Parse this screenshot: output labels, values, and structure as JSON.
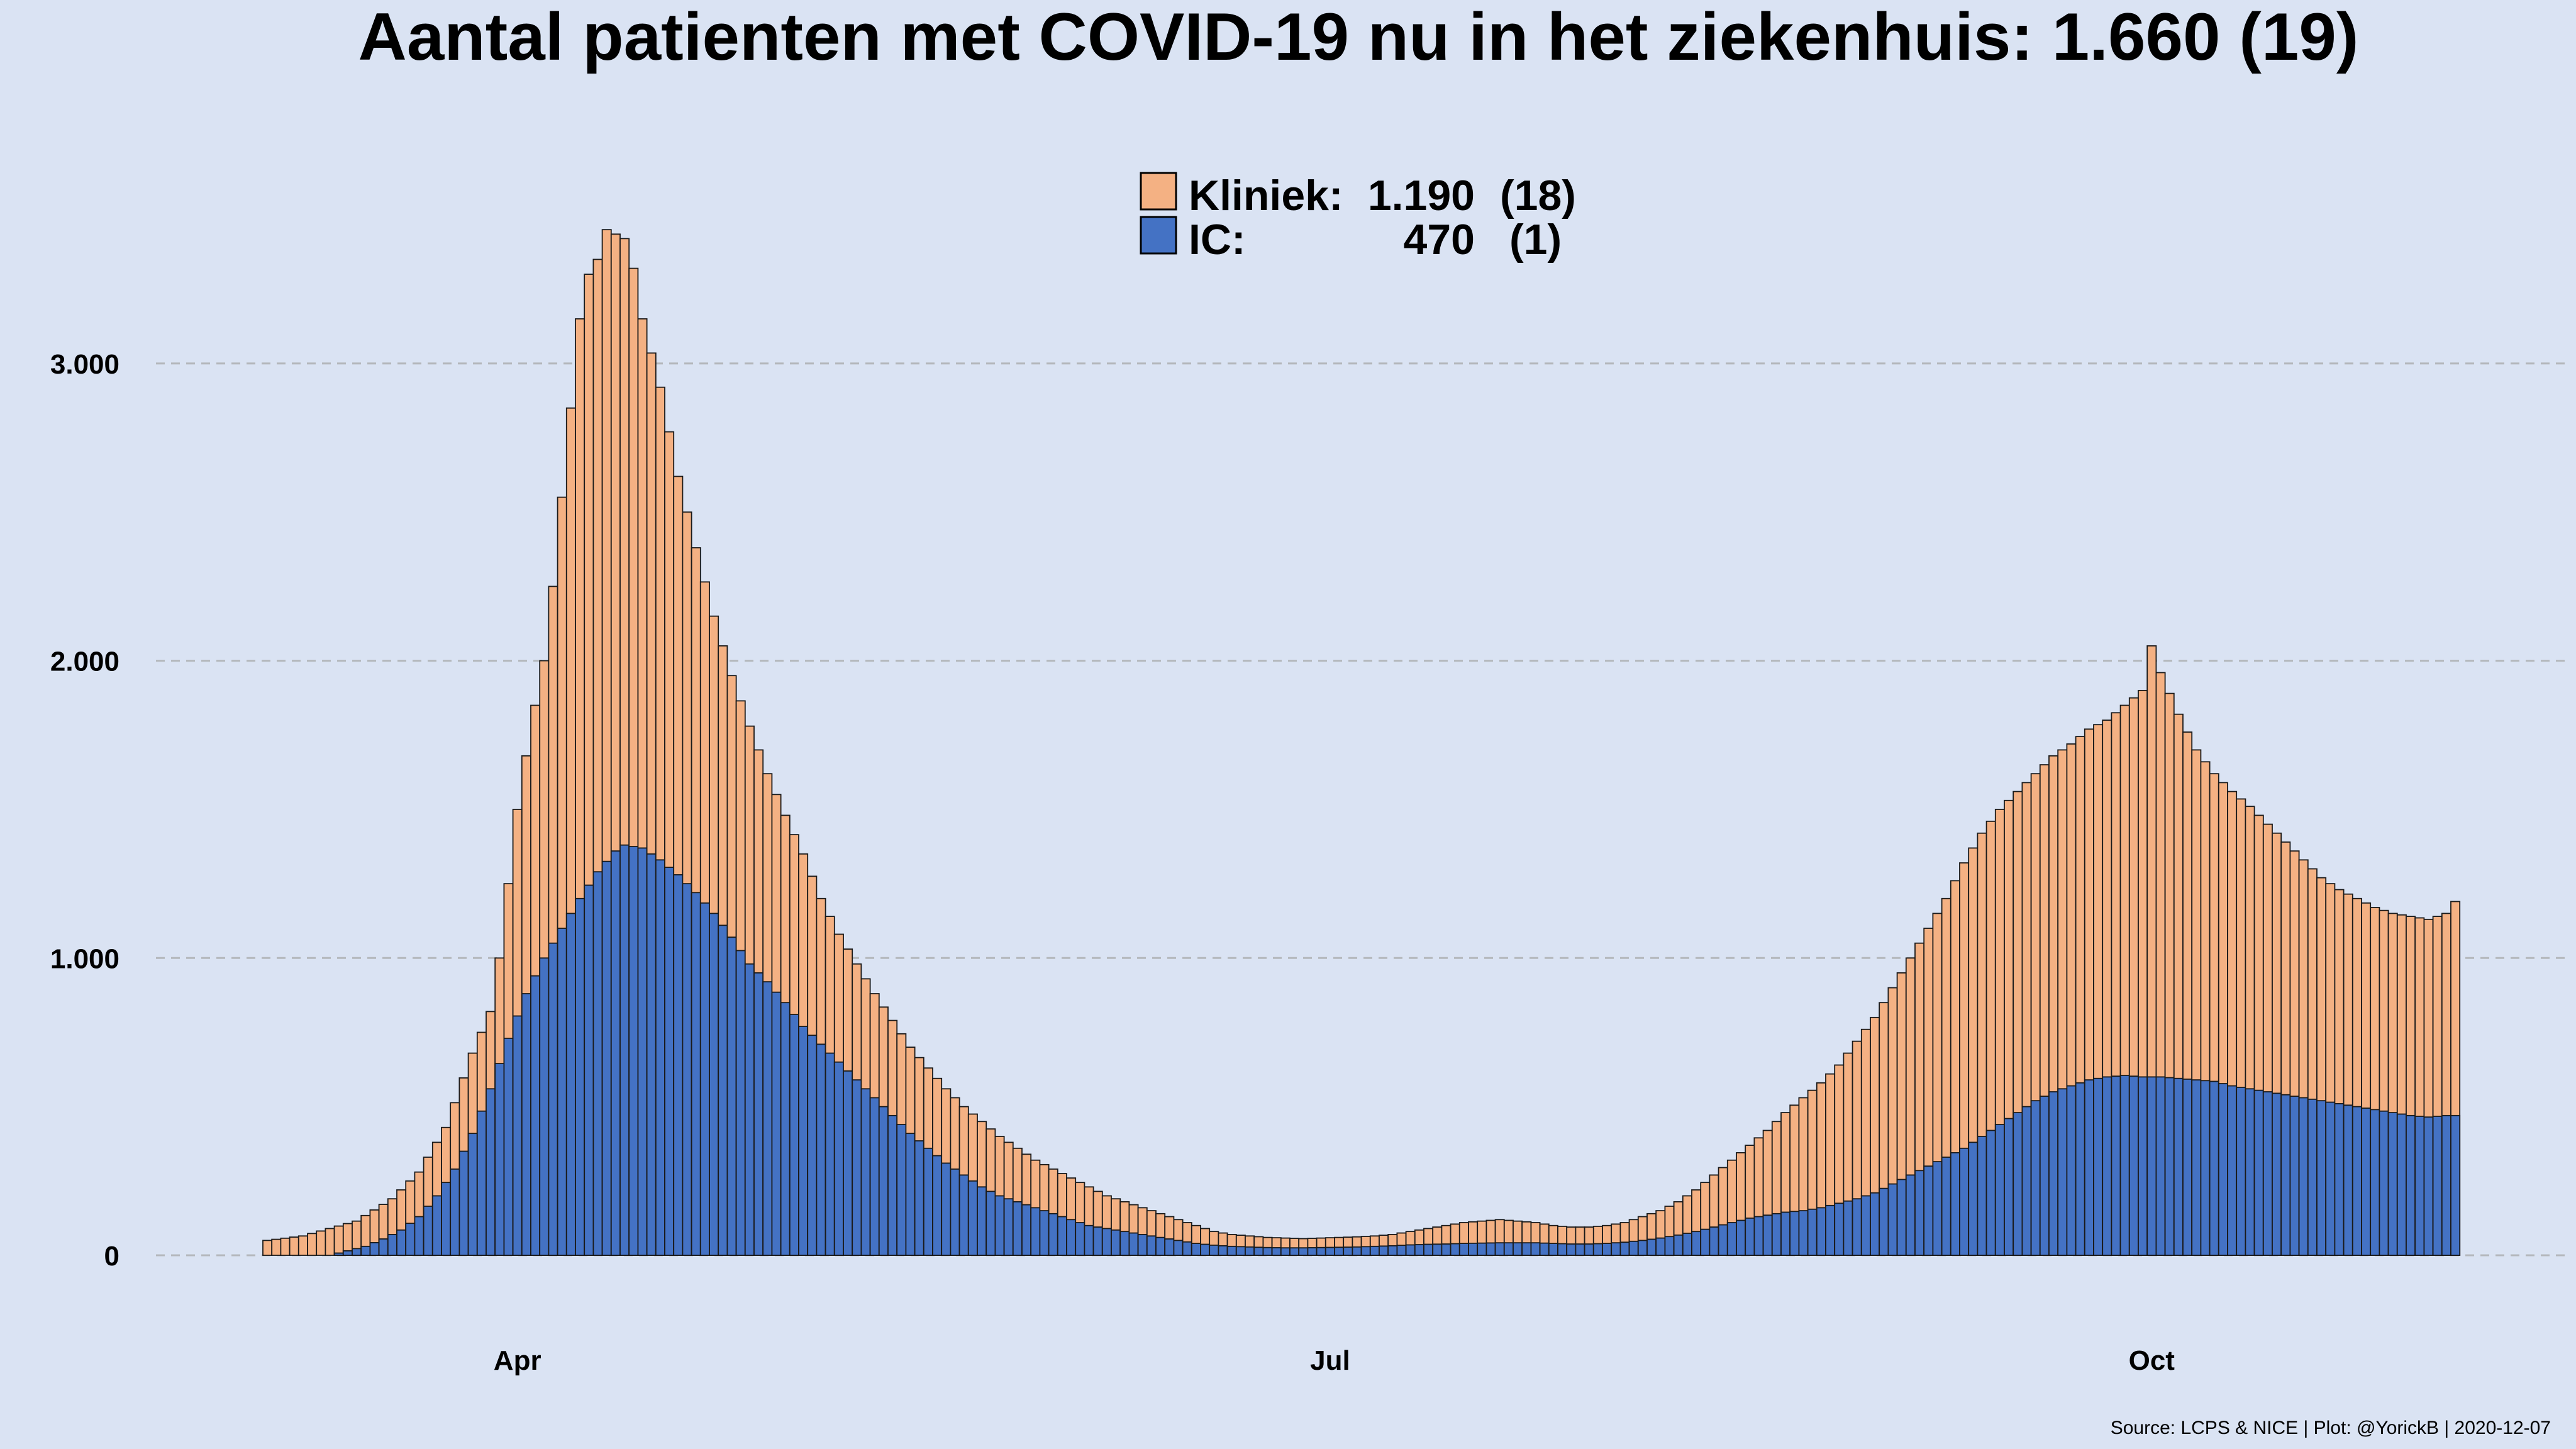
{
  "chart_data": {
    "type": "bar",
    "stacked": true,
    "title": "Aantal patienten met COVID-19 nu in het ziekenhuis: 1.660  (19)",
    "source": "Source: LCPS & NICE | Plot: @YorickB |  2020-12-07",
    "x_ticks": [
      "Apr",
      "Jul",
      "Oct"
    ],
    "y_ticks": [
      "0",
      "1.000",
      "2.000",
      "3.000"
    ],
    "ylim": [
      0,
      4000
    ],
    "grid": "horizontal dashed",
    "legend_position": "top-center",
    "series": [
      {
        "name": "Kliniek",
        "legend_label": "Kliniek:",
        "legend_value": "1.190",
        "legend_delta": "(18)",
        "color": "#f4b183",
        "knots": [
          [
            0,
            50
          ],
          [
            4,
            65
          ],
          [
            10,
            115
          ],
          [
            14,
            190
          ],
          [
            17,
            280
          ],
          [
            20,
            430
          ],
          [
            23,
            680
          ],
          [
            25,
            820
          ],
          [
            26,
            1000
          ],
          [
            27,
            1250
          ],
          [
            28,
            1500
          ],
          [
            29,
            1680
          ],
          [
            30,
            1850
          ],
          [
            31,
            2000
          ],
          [
            32,
            2250
          ],
          [
            33,
            2550
          ],
          [
            34,
            2850
          ],
          [
            35,
            3150
          ],
          [
            36,
            3300
          ],
          [
            37,
            3350
          ],
          [
            38,
            3450
          ],
          [
            40,
            3420
          ],
          [
            41,
            3320
          ],
          [
            42,
            3150
          ],
          [
            44,
            2920
          ],
          [
            46,
            2620
          ],
          [
            48,
            2380
          ],
          [
            50,
            2150
          ],
          [
            52,
            1950
          ],
          [
            54,
            1780
          ],
          [
            56,
            1620
          ],
          [
            58,
            1480
          ],
          [
            60,
            1350
          ],
          [
            62,
            1200
          ],
          [
            64,
            1080
          ],
          [
            66,
            980
          ],
          [
            68,
            880
          ],
          [
            70,
            790
          ],
          [
            72,
            700
          ],
          [
            74,
            630
          ],
          [
            76,
            560
          ],
          [
            78,
            500
          ],
          [
            80,
            450
          ],
          [
            82,
            400
          ],
          [
            84,
            360
          ],
          [
            86,
            320
          ],
          [
            88,
            290
          ],
          [
            90,
            260
          ],
          [
            92,
            230
          ],
          [
            94,
            200
          ],
          [
            96,
            180
          ],
          [
            98,
            160
          ],
          [
            100,
            140
          ],
          [
            102,
            120
          ],
          [
            104,
            100
          ],
          [
            106,
            80
          ],
          [
            108,
            70
          ],
          [
            110,
            65
          ],
          [
            112,
            60
          ],
          [
            114,
            58
          ],
          [
            116,
            56
          ],
          [
            118,
            58
          ],
          [
            120,
            60
          ],
          [
            122,
            62
          ],
          [
            124,
            65
          ],
          [
            126,
            70
          ],
          [
            128,
            80
          ],
          [
            130,
            90
          ],
          [
            132,
            100
          ],
          [
            134,
            110
          ],
          [
            136,
            115
          ],
          [
            138,
            120
          ],
          [
            140,
            115
          ],
          [
            142,
            110
          ],
          [
            144,
            100
          ],
          [
            146,
            95
          ],
          [
            148,
            95
          ],
          [
            150,
            100
          ],
          [
            152,
            110
          ],
          [
            154,
            130
          ],
          [
            156,
            150
          ],
          [
            158,
            180
          ],
          [
            160,
            220
          ],
          [
            162,
            270
          ],
          [
            164,
            320
          ],
          [
            166,
            370
          ],
          [
            168,
            420
          ],
          [
            170,
            480
          ],
          [
            172,
            530
          ],
          [
            174,
            580
          ],
          [
            176,
            640
          ],
          [
            178,
            720
          ],
          [
            180,
            800
          ],
          [
            182,
            900
          ],
          [
            184,
            1000
          ],
          [
            186,
            1100
          ],
          [
            188,
            1200
          ],
          [
            190,
            1320
          ],
          [
            192,
            1420
          ],
          [
            194,
            1500
          ],
          [
            196,
            1560
          ],
          [
            198,
            1620
          ],
          [
            200,
            1680
          ],
          [
            202,
            1720
          ],
          [
            204,
            1770
          ],
          [
            206,
            1800
          ],
          [
            208,
            1850
          ],
          [
            210,
            1900
          ],
          [
            211,
            2050
          ],
          [
            212,
            1960
          ],
          [
            214,
            1820
          ],
          [
            216,
            1700
          ],
          [
            218,
            1620
          ],
          [
            220,
            1560
          ],
          [
            222,
            1510
          ],
          [
            224,
            1450
          ],
          [
            226,
            1390
          ],
          [
            228,
            1330
          ],
          [
            230,
            1270
          ],
          [
            232,
            1230
          ],
          [
            234,
            1200
          ],
          [
            236,
            1170
          ],
          [
            238,
            1150
          ],
          [
            240,
            1140
          ],
          [
            242,
            1130
          ],
          [
            244,
            1150
          ],
          [
            245,
            1190
          ]
        ]
      },
      {
        "name": "IC",
        "legend_label": "IC:",
        "legend_value": "470",
        "legend_delta": "(1)",
        "color": "#4472c4",
        "knots": [
          [
            0,
            0
          ],
          [
            7,
            0
          ],
          [
            9,
            15
          ],
          [
            11,
            30
          ],
          [
            13,
            55
          ],
          [
            15,
            85
          ],
          [
            17,
            130
          ],
          [
            19,
            200
          ],
          [
            21,
            290
          ],
          [
            23,
            410
          ],
          [
            25,
            560
          ],
          [
            27,
            730
          ],
          [
            29,
            880
          ],
          [
            31,
            1000
          ],
          [
            33,
            1100
          ],
          [
            35,
            1200
          ],
          [
            37,
            1290
          ],
          [
            39,
            1360
          ],
          [
            40,
            1380
          ],
          [
            42,
            1370
          ],
          [
            44,
            1330
          ],
          [
            46,
            1280
          ],
          [
            48,
            1220
          ],
          [
            50,
            1150
          ],
          [
            52,
            1070
          ],
          [
            54,
            980
          ],
          [
            56,
            920
          ],
          [
            58,
            850
          ],
          [
            60,
            770
          ],
          [
            62,
            710
          ],
          [
            64,
            650
          ],
          [
            66,
            590
          ],
          [
            68,
            530
          ],
          [
            70,
            470
          ],
          [
            72,
            410
          ],
          [
            74,
            360
          ],
          [
            76,
            310
          ],
          [
            78,
            270
          ],
          [
            80,
            230
          ],
          [
            82,
            200
          ],
          [
            84,
            180
          ],
          [
            86,
            160
          ],
          [
            88,
            140
          ],
          [
            90,
            120
          ],
          [
            92,
            100
          ],
          [
            94,
            90
          ],
          [
            96,
            80
          ],
          [
            98,
            70
          ],
          [
            100,
            60
          ],
          [
            102,
            50
          ],
          [
            104,
            40
          ],
          [
            106,
            34
          ],
          [
            108,
            30
          ],
          [
            110,
            28
          ],
          [
            112,
            26
          ],
          [
            114,
            25
          ],
          [
            116,
            25
          ],
          [
            118,
            26
          ],
          [
            120,
            27
          ],
          [
            122,
            28
          ],
          [
            124,
            30
          ],
          [
            126,
            32
          ],
          [
            128,
            35
          ],
          [
            130,
            37
          ],
          [
            132,
            38
          ],
          [
            134,
            40
          ],
          [
            136,
            41
          ],
          [
            138,
            42
          ],
          [
            140,
            42
          ],
          [
            142,
            42
          ],
          [
            144,
            40
          ],
          [
            146,
            38
          ],
          [
            148,
            38
          ],
          [
            150,
            40
          ],
          [
            152,
            44
          ],
          [
            154,
            50
          ],
          [
            156,
            58
          ],
          [
            158,
            68
          ],
          [
            160,
            80
          ],
          [
            162,
            95
          ],
          [
            164,
            110
          ],
          [
            166,
            125
          ],
          [
            168,
            135
          ],
          [
            170,
            145
          ],
          [
            172,
            150
          ],
          [
            174,
            160
          ],
          [
            176,
            175
          ],
          [
            178,
            190
          ],
          [
            180,
            210
          ],
          [
            182,
            240
          ],
          [
            184,
            270
          ],
          [
            186,
            300
          ],
          [
            188,
            330
          ],
          [
            190,
            360
          ],
          [
            192,
            400
          ],
          [
            194,
            440
          ],
          [
            196,
            480
          ],
          [
            198,
            520
          ],
          [
            200,
            550
          ],
          [
            202,
            570
          ],
          [
            204,
            590
          ],
          [
            206,
            600
          ],
          [
            208,
            605
          ],
          [
            210,
            600
          ],
          [
            212,
            600
          ],
          [
            214,
            595
          ],
          [
            216,
            590
          ],
          [
            218,
            585
          ],
          [
            220,
            570
          ],
          [
            222,
            560
          ],
          [
            224,
            550
          ],
          [
            226,
            540
          ],
          [
            228,
            530
          ],
          [
            230,
            520
          ],
          [
            232,
            510
          ],
          [
            234,
            500
          ],
          [
            236,
            490
          ],
          [
            238,
            480
          ],
          [
            240,
            470
          ],
          [
            242,
            465
          ],
          [
            244,
            470
          ],
          [
            245,
            470
          ]
        ]
      }
    ]
  }
}
